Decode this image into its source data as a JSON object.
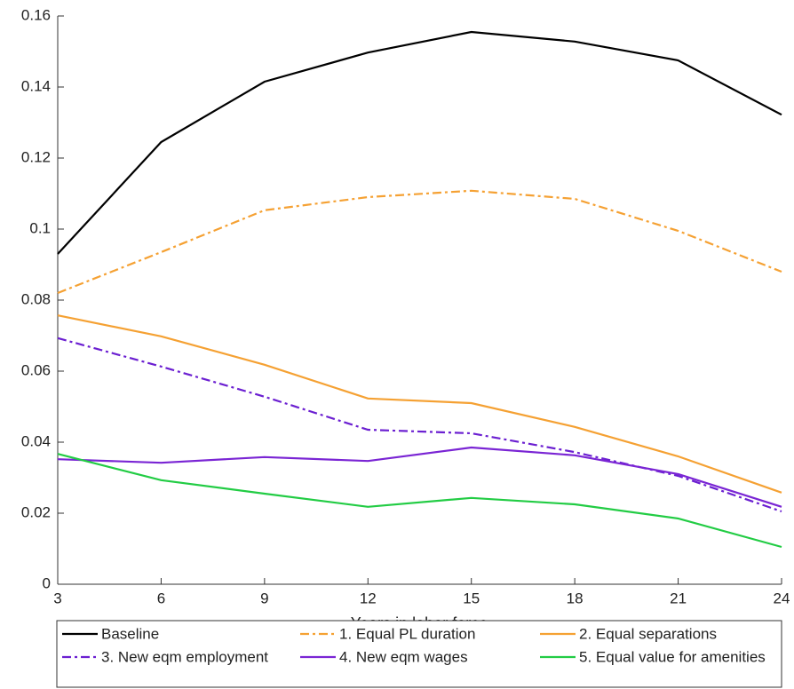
{
  "chart_data": {
    "type": "line",
    "x": [
      3,
      6,
      9,
      12,
      15,
      18,
      21,
      24
    ],
    "xlabel": "Years in labor force",
    "xlim": [
      3,
      24
    ],
    "xticks": [
      3,
      6,
      9,
      12,
      15,
      18,
      21,
      24
    ],
    "ylim": [
      0,
      0.16
    ],
    "yticks": [
      0,
      0.02,
      0.04,
      0.06,
      0.08,
      0.1,
      0.12,
      0.14,
      0.16
    ],
    "grid": false,
    "legend": "bottom",
    "series": [
      {
        "name": "Baseline",
        "color": "#000000",
        "dash": "solid",
        "values": [
          0.093,
          0.1245,
          0.1415,
          0.1497,
          0.1555,
          0.1528,
          0.1475,
          0.1322
        ]
      },
      {
        "name": "1. Equal PL duration",
        "color": "#f5a133",
        "dash": "dashdot",
        "values": [
          0.082,
          0.0935,
          0.1053,
          0.109,
          0.1108,
          0.1085,
          0.0995,
          0.088
        ]
      },
      {
        "name": "2. Equal separations",
        "color": "#f5a133",
        "dash": "solid",
        "values": [
          0.0757,
          0.0698,
          0.0618,
          0.0523,
          0.051,
          0.0443,
          0.036,
          0.0258
        ]
      },
      {
        "name": "3. New eqm employment",
        "color": "#6b1fd1",
        "dash": "dashdot",
        "values": [
          0.0693,
          0.0613,
          0.0528,
          0.0435,
          0.0425,
          0.0372,
          0.0305,
          0.0205
        ]
      },
      {
        "name": "4. New eqm wages",
        "color": "#7a25d4",
        "dash": "solid",
        "values": [
          0.0352,
          0.0342,
          0.0358,
          0.0347,
          0.0385,
          0.0363,
          0.031,
          0.0218
        ]
      },
      {
        "name": "5. Equal value for amenities",
        "color": "#22cc44",
        "dash": "solid",
        "values": [
          0.0367,
          0.0293,
          0.0255,
          0.0218,
          0.0243,
          0.0225,
          0.0185,
          0.0105
        ]
      }
    ]
  }
}
